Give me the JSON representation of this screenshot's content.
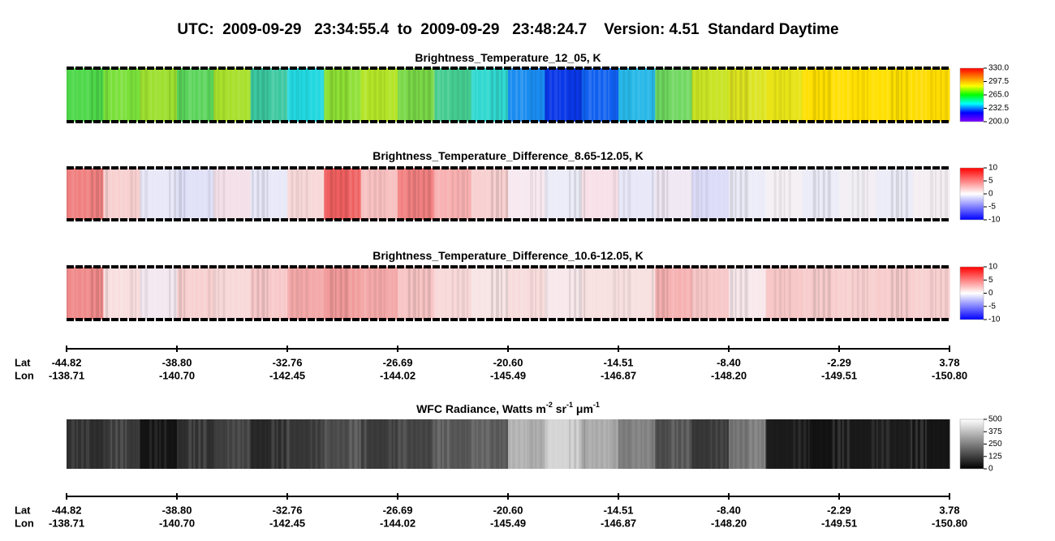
{
  "title": "UTC:  2009-09-29   23:34:55.4  to  2009-09-29   23:48:24.7    Version: 4.51  Standard Daytime",
  "chart_data": [
    {
      "type": "heatmap",
      "title_parts": [
        {
          "text": "Brightness_Temperature_12_05, K"
        }
      ],
      "clim": [
        200,
        330
      ],
      "cticks": [
        {
          "value": 200,
          "label": "200.0"
        },
        232.5,
        {
          "value": 265,
          "label": "265.0"
        },
        297.5,
        {
          "value": 330,
          "label": "330.0"
        }
      ],
      "colormap": [
        "#8000ff",
        "#0000ff",
        "#00ffff",
        "#00ff00",
        "#ffff00",
        "#ff8000",
        "#ff0000"
      ],
      "scan_edges": true,
      "strip": [
        "#4ed84a",
        "#7ae03a",
        "#9ee030",
        "#5ad45a",
        "#a8e02c",
        "#3cc8a0",
        "#22d8e0",
        "#8ee034",
        "#b4e428",
        "#7ad848",
        "#44cc90",
        "#30d8d0",
        "#1a8cf0",
        "#0a38e8",
        "#1060f0",
        "#28b8e8",
        "#70d860",
        "#c8e424",
        "#dce420",
        "#e8e418",
        "#ffe000",
        "#ffe000",
        "#ffe000",
        "#ffdc00"
      ]
    },
    {
      "type": "heatmap",
      "title_parts": [
        {
          "text": "Brightness_Temperature_Difference_8.65-12.05, K"
        }
      ],
      "clim": [
        -10,
        10
      ],
      "cticks": [
        -10,
        -5,
        0,
        5,
        10
      ],
      "colormap": [
        "#0000ff",
        "#8080ff",
        "#ffffff",
        "#ff8080",
        "#ff0000"
      ],
      "scan_edges": true,
      "strip": [
        "#f08080",
        "#f8d0d0",
        "#e8e8f8",
        "#e0e0f8",
        "#f4e0e8",
        "#e8e8f8",
        "#f8d8d8",
        "#f06060",
        "#f8c0c0",
        "#f28080",
        "#f8b0b0",
        "#f8d0d0",
        "#f8e8f0",
        "#ececf8",
        "#f8e0e8",
        "#e8e8f8",
        "#f0e8f4",
        "#dcdcf8",
        "#ececf8",
        "#f4f0f4",
        "#ececf8",
        "#f2eef4",
        "#ececf8",
        "#f4eef2"
      ]
    },
    {
      "type": "heatmap",
      "title_parts": [
        {
          "text": "Brightness_Temperature_Difference_10.6-12.05, K"
        }
      ],
      "clim": [
        -10,
        10
      ],
      "cticks": [
        -10,
        -5,
        0,
        5,
        10
      ],
      "colormap": [
        "#0000ff",
        "#8080ff",
        "#ffffff",
        "#ff8080",
        "#ff0000"
      ],
      "scan_edges": true,
      "strip": [
        "#f08a8a",
        "#f8dede",
        "#f4e8f0",
        "#f8d0d0",
        "#f8d8d8",
        "#f8c8c8",
        "#f4a8a8",
        "#f29a9a",
        "#f4a8a8",
        "#f8c4c4",
        "#f8d8d8",
        "#f8e4e4",
        "#f8dcdc",
        "#f8e8ec",
        "#f8e0e0",
        "#f8e0e0",
        "#f6b0b0",
        "#f8c8c8",
        "#f8e8ec",
        "#f8c8c8",
        "#f8cccc",
        "#f8d0d0",
        "#f8cccc",
        "#f8d0d0"
      ]
    },
    {
      "type": "heatmap",
      "title_parts": [
        {
          "text": "WFC Radiance, Watts m"
        },
        {
          "text": "-2",
          "sup": true
        },
        {
          "text": " sr"
        },
        {
          "text": "-1",
          "sup": true
        },
        {
          "text": " μm"
        },
        {
          "text": "-1",
          "sup": true
        }
      ],
      "clim": [
        0,
        500
      ],
      "cticks": [
        0,
        125,
        250,
        375,
        500
      ],
      "colormap": [
        "#000000",
        "#ffffff"
      ],
      "scan_edges": false,
      "strip": [
        "#303030",
        "#3a3a3a",
        "#141414",
        "#303030",
        "#404040",
        "#2a2a2a",
        "#383838",
        "#505050",
        "#3c3c3c",
        "#484848",
        "#585858",
        "#606060",
        "#b0b0b0",
        "#d4d4d4",
        "#a8a8a8",
        "#808080",
        "#505050",
        "#383838",
        "#7a7a7a",
        "#1c1c1c",
        "#141414",
        "#1a1a1a",
        "#1e1e1e",
        "#161616"
      ]
    }
  ],
  "position_axes": [
    {
      "rows": [
        "Lat",
        "Lon"
      ],
      "lat": [
        "-44.82",
        "-38.80",
        "-32.76",
        "-26.69",
        "-20.60",
        "-14.51",
        "-8.40",
        "-2.29",
        "3.78"
      ],
      "lon": [
        "-138.71",
        "-140.70",
        "-142.45",
        "-144.02",
        "-145.49",
        "-146.87",
        "-148.20",
        "-149.51",
        "-150.80"
      ]
    },
    {
      "rows": [
        "Lat",
        "Lon"
      ],
      "lat": [
        "-44.82",
        "-38.80",
        "-32.76",
        "-26.69",
        "-20.60",
        "-14.51",
        "-8.40",
        "-2.29",
        "3.78"
      ],
      "lon": [
        "-138.71",
        "-140.70",
        "-142.45",
        "-144.02",
        "-145.49",
        "-146.87",
        "-148.20",
        "-149.51",
        "-150.80"
      ]
    }
  ]
}
